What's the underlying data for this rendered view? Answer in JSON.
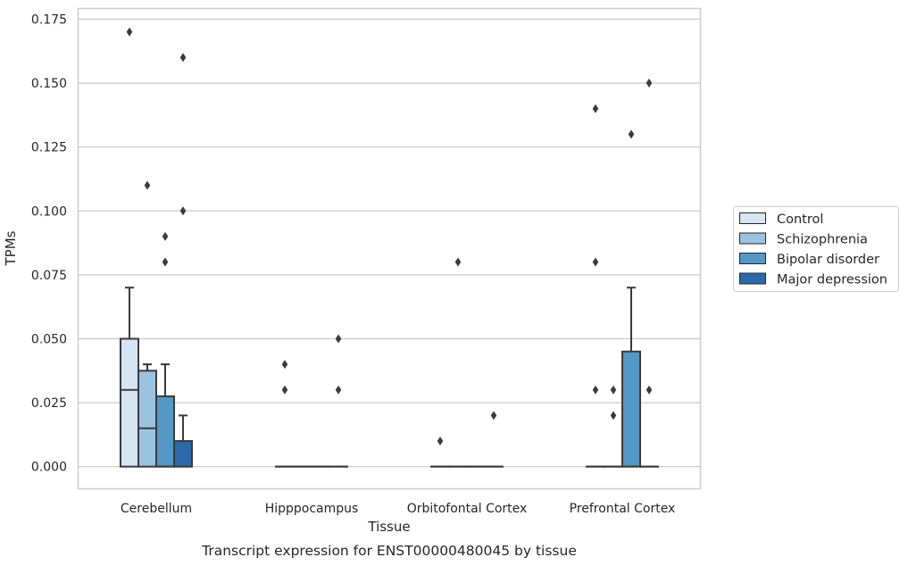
{
  "chart_data": {
    "type": "boxplot",
    "title": "",
    "caption": "Transcript expression for ENST00000480045 by tissue",
    "xlabel": "Tissue",
    "ylabel": "TPMs",
    "ylim": [
      -0.0085,
      0.179
    ],
    "y_ticks": [
      "0.000",
      "0.025",
      "0.050",
      "0.075",
      "0.100",
      "0.125",
      "0.150",
      "0.175"
    ],
    "grid": "horizontal",
    "legend_position": "right",
    "categories": [
      "Cerebellum",
      "Hipppocampus",
      "Orbitofontal Cortex",
      "Prefrontal Cortex"
    ],
    "series": [
      {
        "name": "Control",
        "color": "#d6e5f3",
        "boxes": [
          {
            "q1": 0.0,
            "median": 0.03,
            "q3": 0.05,
            "whisker_low": 0.0,
            "whisker_high": 0.07,
            "outliers": [
              0.17
            ]
          },
          {
            "q1": 0.0,
            "median": 0.0,
            "q3": 0.0,
            "whisker_low": 0.0,
            "whisker_high": 0.0,
            "outliers": [
              0.03,
              0.04
            ]
          },
          {
            "q1": 0.0,
            "median": 0.0,
            "q3": 0.0,
            "whisker_low": 0.0,
            "whisker_high": 0.0,
            "outliers": [
              0.01
            ]
          },
          {
            "q1": 0.0,
            "median": 0.0,
            "q3": 0.0,
            "whisker_low": 0.0,
            "whisker_high": 0.0,
            "outliers": [
              0.03,
              0.08,
              0.14
            ]
          }
        ]
      },
      {
        "name": "Schizophrenia",
        "color": "#9ac3e0",
        "boxes": [
          {
            "q1": 0.0,
            "median": 0.015,
            "q3": 0.0375,
            "whisker_low": 0.0,
            "whisker_high": 0.04,
            "outliers": [
              0.11
            ]
          },
          {
            "q1": 0.0,
            "median": 0.0,
            "q3": 0.0,
            "whisker_low": 0.0,
            "whisker_high": 0.0,
            "outliers": []
          },
          {
            "q1": 0.0,
            "median": 0.0,
            "q3": 0.0,
            "whisker_low": 0.0,
            "whisker_high": 0.0,
            "outliers": [
              0.08
            ]
          },
          {
            "q1": 0.0,
            "median": 0.0,
            "q3": 0.0,
            "whisker_low": 0.0,
            "whisker_high": 0.0,
            "outliers": [
              0.02,
              0.03
            ]
          }
        ]
      },
      {
        "name": "Bipolar disorder",
        "color": "#5398c6",
        "boxes": [
          {
            "q1": 0.0,
            "median": 0.0,
            "q3": 0.0275,
            "whisker_low": 0.0,
            "whisker_high": 0.04,
            "outliers": [
              0.08,
              0.09
            ]
          },
          {
            "q1": 0.0,
            "median": 0.0,
            "q3": 0.0,
            "whisker_low": 0.0,
            "whisker_high": 0.0,
            "outliers": []
          },
          {
            "q1": 0.0,
            "median": 0.0,
            "q3": 0.0,
            "whisker_low": 0.0,
            "whisker_high": 0.0,
            "outliers": []
          },
          {
            "q1": 0.0,
            "median": 0.0,
            "q3": 0.045,
            "whisker_low": 0.0,
            "whisker_high": 0.07,
            "outliers": [
              0.13
            ]
          }
        ]
      },
      {
        "name": "Major depression",
        "color": "#2a6aaa",
        "boxes": [
          {
            "q1": 0.0,
            "median": 0.0,
            "q3": 0.01,
            "whisker_low": 0.0,
            "whisker_high": 0.02,
            "outliers": [
              0.1,
              0.16
            ]
          },
          {
            "q1": 0.0,
            "median": 0.0,
            "q3": 0.0,
            "whisker_low": 0.0,
            "whisker_high": 0.0,
            "outliers": [
              0.03,
              0.05
            ]
          },
          {
            "q1": 0.0,
            "median": 0.0,
            "q3": 0.0,
            "whisker_low": 0.0,
            "whisker_high": 0.0,
            "outliers": [
              0.02
            ]
          },
          {
            "q1": 0.0,
            "median": 0.0,
            "q3": 0.0,
            "whisker_low": 0.0,
            "whisker_high": 0.0,
            "outliers": [
              0.03,
              0.15
            ]
          }
        ]
      }
    ]
  }
}
